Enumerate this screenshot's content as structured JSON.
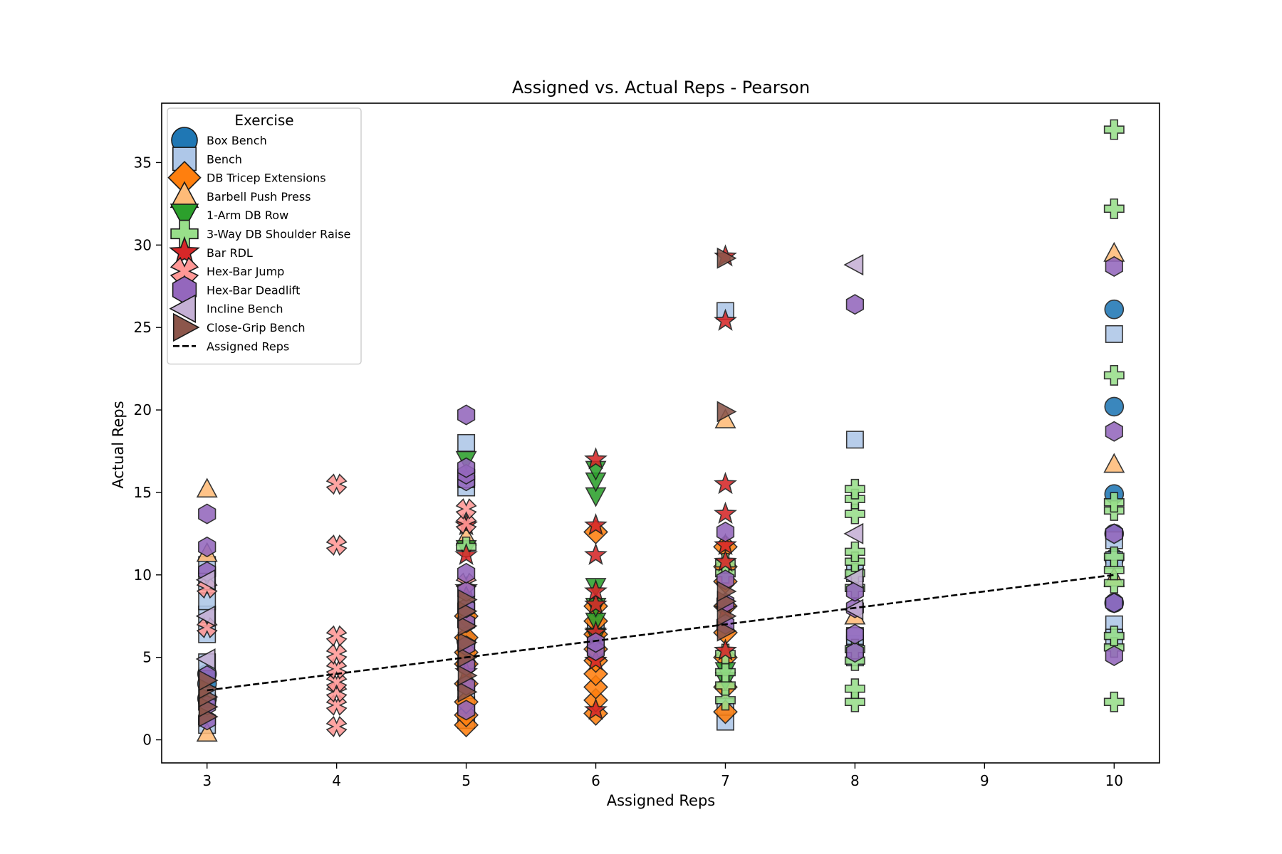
{
  "chart_data": {
    "type": "scatter",
    "title": "Assigned vs. Actual Reps - Pearson",
    "xlabel": "Assigned Reps",
    "ylabel": "Actual Reps",
    "xlim": [
      2.65,
      10.35
    ],
    "ylim": [
      -1.4,
      38.6
    ],
    "xticks": [
      3,
      4,
      5,
      6,
      7,
      8,
      9,
      10
    ],
    "yticks": [
      0,
      5,
      10,
      15,
      20,
      25,
      30,
      35
    ],
    "grid": false,
    "legend": {
      "title": "Exercise",
      "placement": "top-left"
    },
    "series": [
      {
        "name": "Box Bench",
        "marker": "circle",
        "color": "#1f77b4",
        "points": [
          [
            3,
            2.5
          ],
          [
            3,
            3.4
          ],
          [
            3,
            4.0
          ],
          [
            5,
            4.6
          ],
          [
            5,
            6.0
          ],
          [
            10,
            26.1
          ],
          [
            10,
            20.2
          ],
          [
            10,
            14.9
          ],
          [
            10,
            12.5
          ],
          [
            10,
            11.0
          ],
          [
            10,
            8.3
          ]
        ]
      },
      {
        "name": "Bench",
        "marker": "square",
        "color": "#aec7e8",
        "points": [
          [
            3,
            0.9
          ],
          [
            3,
            2.7
          ],
          [
            3,
            4.7
          ],
          [
            3,
            6.4
          ],
          [
            3,
            7.6
          ],
          [
            3,
            8.4
          ],
          [
            3,
            9.6
          ],
          [
            3,
            10.6
          ],
          [
            5,
            1.2
          ],
          [
            5,
            2.1
          ],
          [
            5,
            3.0
          ],
          [
            5,
            5.5
          ],
          [
            5,
            7.3
          ],
          [
            5,
            8.2
          ],
          [
            5,
            15.3
          ],
          [
            5,
            15.8
          ],
          [
            5,
            18.0
          ],
          [
            6,
            6.8
          ],
          [
            6,
            5.7
          ],
          [
            7,
            1.1
          ],
          [
            7,
            2.0
          ],
          [
            7,
            26.0
          ],
          [
            8,
            5.0
          ],
          [
            8,
            5.8
          ],
          [
            8,
            6.3
          ],
          [
            8,
            10.1
          ],
          [
            8,
            18.2
          ],
          [
            10,
            24.6
          ],
          [
            10,
            12.1
          ],
          [
            10,
            10.9
          ],
          [
            10,
            7.0
          ],
          [
            10,
            6.2
          ]
        ]
      },
      {
        "name": "DB Tricep Extensions",
        "marker": "diamond",
        "color": "#ff7f0e",
        "points": [
          [
            5,
            0.9
          ],
          [
            5,
            1.5
          ],
          [
            5,
            2.3
          ],
          [
            5,
            3.4
          ],
          [
            5,
            4.6
          ],
          [
            5,
            5.3
          ],
          [
            5,
            6.2
          ],
          [
            5,
            7.5
          ],
          [
            6,
            1.6
          ],
          [
            6,
            2.4
          ],
          [
            6,
            3.2
          ],
          [
            6,
            4.0
          ],
          [
            6,
            4.8
          ],
          [
            6,
            5.5
          ],
          [
            6,
            6.4
          ],
          [
            6,
            7.2
          ],
          [
            6,
            8.1
          ],
          [
            6,
            12.6
          ],
          [
            7,
            1.7
          ],
          [
            7,
            3.2
          ],
          [
            7,
            5.0
          ],
          [
            7,
            6.5
          ],
          [
            7,
            8.1
          ],
          [
            7,
            9.6
          ],
          [
            7,
            10.5
          ],
          [
            7,
            11.7
          ]
        ]
      },
      {
        "name": "Barbell Push Press",
        "marker": "triangle-up",
        "color": "#ffbb78",
        "points": [
          [
            3,
            0.4
          ],
          [
            3,
            11.3
          ],
          [
            3,
            15.2
          ],
          [
            5,
            12.3
          ],
          [
            7,
            19.4
          ],
          [
            8,
            7.5
          ],
          [
            10,
            29.5
          ],
          [
            10,
            16.7
          ],
          [
            10,
            9.8
          ]
        ]
      },
      {
        "name": "1-Arm DB Row",
        "marker": "triangle-down",
        "color": "#2ca02c",
        "points": [
          [
            5,
            11.6
          ],
          [
            5,
            17.0
          ],
          [
            6,
            6.3
          ],
          [
            6,
            7.2
          ],
          [
            6,
            8.1
          ],
          [
            6,
            9.3
          ],
          [
            6,
            14.8
          ],
          [
            6,
            15.7
          ],
          [
            6,
            16.4
          ],
          [
            7,
            3.6
          ],
          [
            7,
            4.2
          ]
        ]
      },
      {
        "name": "3-Way DB Shoulder Raise",
        "marker": "plus",
        "color": "#98df8a",
        "points": [
          [
            5,
            11.7
          ],
          [
            7,
            2.4
          ],
          [
            7,
            3.3
          ],
          [
            7,
            4.1
          ],
          [
            7,
            5.2
          ],
          [
            7,
            10.1
          ],
          [
            7,
            10.7
          ],
          [
            8,
            2.3
          ],
          [
            8,
            3.1
          ],
          [
            8,
            4.8
          ],
          [
            8,
            5.5
          ],
          [
            8,
            9.2
          ],
          [
            8,
            10.1
          ],
          [
            8,
            10.8
          ],
          [
            8,
            11.4
          ],
          [
            8,
            13.7
          ],
          [
            8,
            14.6
          ],
          [
            8,
            15.2
          ],
          [
            10,
            2.3
          ],
          [
            10,
            5.6
          ],
          [
            10,
            6.3
          ],
          [
            10,
            9.5
          ],
          [
            10,
            10.3
          ],
          [
            10,
            11.1
          ],
          [
            10,
            13.9
          ],
          [
            10,
            14.4
          ],
          [
            10,
            22.1
          ],
          [
            10,
            32.2
          ],
          [
            10,
            37.0
          ]
        ]
      },
      {
        "name": "Bar RDL",
        "marker": "star",
        "color": "#d62728",
        "points": [
          [
            5,
            4.1
          ],
          [
            5,
            9.2
          ],
          [
            5,
            11.2
          ],
          [
            5,
            13.0
          ],
          [
            6,
            1.8
          ],
          [
            6,
            4.8
          ],
          [
            6,
            6.5
          ],
          [
            6,
            8.2
          ],
          [
            6,
            9.0
          ],
          [
            6,
            11.2
          ],
          [
            6,
            13.0
          ],
          [
            6,
            17.0
          ],
          [
            7,
            5.4
          ],
          [
            7,
            7.9
          ],
          [
            7,
            10.8
          ],
          [
            7,
            11.8
          ],
          [
            7,
            13.7
          ],
          [
            7,
            15.5
          ],
          [
            7,
            25.4
          ],
          [
            7,
            29.3
          ]
        ]
      },
      {
        "name": "Hex-Bar Jump",
        "marker": "x",
        "color": "#ff9896",
        "points": [
          [
            3,
            6.8
          ],
          [
            3,
            9.2
          ],
          [
            4,
            0.8
          ],
          [
            4,
            2.1
          ],
          [
            4,
            2.9
          ],
          [
            4,
            3.5
          ],
          [
            4,
            4.3
          ],
          [
            4,
            5.2
          ],
          [
            4,
            6.3
          ],
          [
            4,
            11.8
          ],
          [
            4,
            15.5
          ],
          [
            5,
            9.5
          ],
          [
            5,
            13.1
          ],
          [
            5,
            14.0
          ]
        ]
      },
      {
        "name": "Hex-Bar Deadlift",
        "marker": "hexagon",
        "color": "#9467bd",
        "points": [
          [
            3,
            1.2
          ],
          [
            3,
            2.1
          ],
          [
            3,
            3.9
          ],
          [
            3,
            10.2
          ],
          [
            3,
            11.7
          ],
          [
            3,
            13.7
          ],
          [
            5,
            1.8
          ],
          [
            5,
            3.3
          ],
          [
            5,
            4.5
          ],
          [
            5,
            5.7
          ],
          [
            5,
            7.1
          ],
          [
            5,
            8.0
          ],
          [
            5,
            9.0
          ],
          [
            5,
            10.1
          ],
          [
            5,
            15.7
          ],
          [
            5,
            16.1
          ],
          [
            5,
            16.5
          ],
          [
            5,
            19.7
          ],
          [
            6,
            5.4
          ],
          [
            6,
            5.9
          ],
          [
            7,
            7.0
          ],
          [
            7,
            8.3
          ],
          [
            7,
            9.7
          ],
          [
            7,
            12.6
          ],
          [
            8,
            5.3
          ],
          [
            8,
            6.4
          ],
          [
            8,
            8.0
          ],
          [
            8,
            9.0
          ],
          [
            8,
            26.4
          ],
          [
            10,
            5.1
          ],
          [
            10,
            8.3
          ],
          [
            10,
            12.5
          ],
          [
            10,
            18.7
          ],
          [
            10,
            28.7
          ]
        ]
      },
      {
        "name": "Incline Bench",
        "marker": "triangle-left",
        "color": "#c5b0d5",
        "points": [
          [
            3,
            4.9
          ],
          [
            3,
            7.5
          ],
          [
            3,
            9.7
          ],
          [
            8,
            7.9
          ],
          [
            8,
            9.8
          ],
          [
            8,
            12.5
          ],
          [
            8,
            28.8
          ]
        ]
      },
      {
        "name": "Close-Grip Bench",
        "marker": "triangle-right",
        "color": "#8c564b",
        "points": [
          [
            3,
            1.4
          ],
          [
            3,
            2.0
          ],
          [
            3,
            2.6
          ],
          [
            3,
            3.1
          ],
          [
            3,
            3.6
          ],
          [
            5,
            2.9
          ],
          [
            5,
            3.9
          ],
          [
            5,
            5.0
          ],
          [
            5,
            5.9
          ],
          [
            5,
            6.9
          ],
          [
            5,
            7.8
          ],
          [
            5,
            8.5
          ],
          [
            7,
            6.6
          ],
          [
            7,
            7.5
          ],
          [
            7,
            8.4
          ],
          [
            7,
            9.0
          ],
          [
            7,
            19.9
          ],
          [
            7,
            29.2
          ]
        ]
      }
    ],
    "reference_line": {
      "name": "Assigned Reps",
      "style": "dashed",
      "color": "#000000",
      "points": [
        [
          3,
          3
        ],
        [
          4,
          4
        ],
        [
          5,
          5
        ],
        [
          6,
          6
        ],
        [
          7,
          7
        ],
        [
          8,
          8
        ],
        [
          10,
          10
        ]
      ]
    }
  }
}
